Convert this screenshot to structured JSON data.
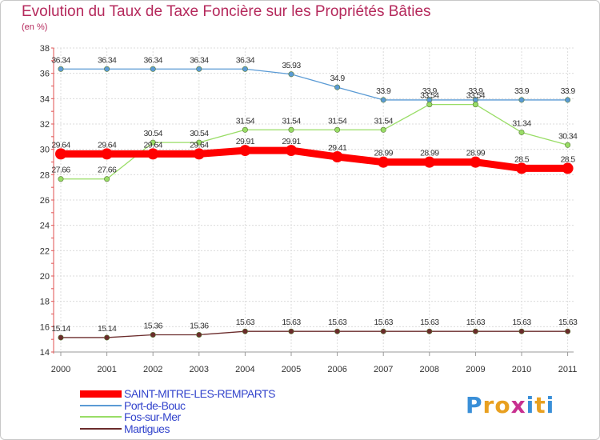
{
  "chart_data": {
    "type": "line",
    "title": "Evolution du Taux de Taxe Foncière sur les Propriétés Bâties",
    "subtitle": "(en %)",
    "x": [
      "2000",
      "2001",
      "2002",
      "2003",
      "2004",
      "2005",
      "2006",
      "2007",
      "2008",
      "2009",
      "2010",
      "2011"
    ],
    "ylim": [
      14,
      38
    ],
    "yticks": [
      "14",
      "16",
      "18",
      "20",
      "22",
      "24",
      "26",
      "28",
      "30",
      "32",
      "34",
      "36",
      "38"
    ],
    "grid": true,
    "legend_position": "bottom-left",
    "series": [
      {
        "name": "SAINT-MITRE-LES-REMPARTS",
        "color": "#ff0000",
        "values": [
          29.64,
          29.64,
          29.64,
          29.64,
          29.91,
          29.91,
          29.41,
          28.99,
          28.99,
          28.99,
          28.5,
          28.5
        ],
        "labels": [
          "29.64",
          "29.64",
          "29.64",
          "29.64",
          "29.91",
          "29.91",
          "29.41",
          "28.99",
          "28.99",
          "28.99",
          "28.5",
          "28.5"
        ]
      },
      {
        "name": "Port-de-Bouc",
        "color": "#5b9bd5",
        "values": [
          36.34,
          36.34,
          36.34,
          36.34,
          36.34,
          35.93,
          34.9,
          33.9,
          33.9,
          33.9,
          33.9,
          33.9
        ],
        "labels": [
          "36.34",
          "36.34",
          "36.34",
          "36.34",
          "36.34",
          "35.93",
          "34.9",
          "33.9",
          "33.9",
          "33.9",
          "33.9",
          "33.9"
        ]
      },
      {
        "name": "Fos-sur-Mer",
        "color": "#99dd66",
        "values": [
          27.66,
          27.66,
          30.54,
          30.54,
          31.54,
          31.54,
          31.54,
          31.54,
          33.54,
          33.54,
          31.34,
          30.34
        ],
        "labels": [
          "27.66",
          "27.66",
          "30.54",
          "30.54",
          "31.54",
          "31.54",
          "31.54",
          "31.54",
          "33.54",
          "33.54",
          "31.34",
          "30.34"
        ]
      },
      {
        "name": "Martigues",
        "color": "#6b2c2c",
        "values": [
          15.14,
          15.14,
          15.36,
          15.36,
          15.63,
          15.63,
          15.63,
          15.63,
          15.63,
          15.63,
          15.63,
          15.63
        ],
        "labels": [
          "15.14",
          "15.14",
          "15.36",
          "15.36",
          "15.63",
          "15.63",
          "15.63",
          "15.63",
          "15.63",
          "15.63",
          "15.63",
          "15.63"
        ]
      }
    ]
  },
  "logo": {
    "text": "Proxiti",
    "colors": [
      "#3a8fd8",
      "#e8a020",
      "#e8a020",
      "#c83090",
      "#3a8fd8",
      "#e8a020",
      "#3a8fd8"
    ]
  }
}
